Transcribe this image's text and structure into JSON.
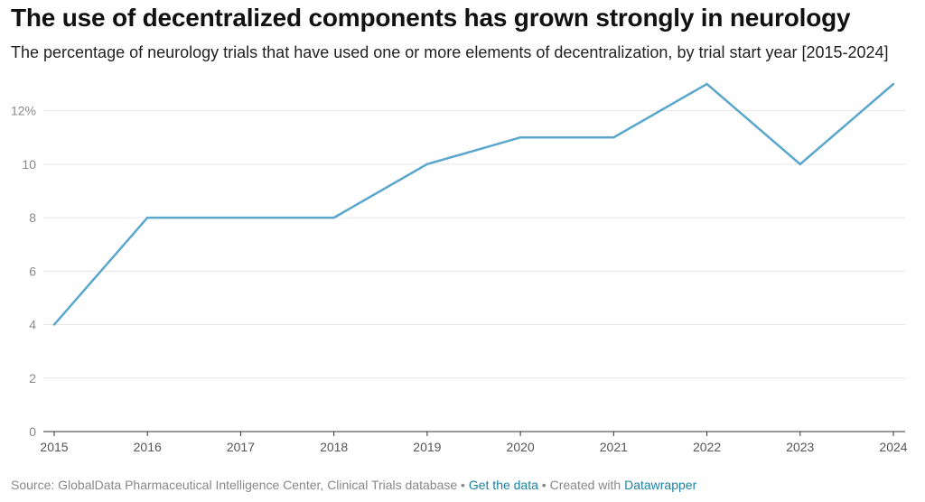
{
  "title": "The use of decentralized components has grown strongly in neurology",
  "subtitle": "The percentage of neurology trials that have used one or more elements of decentralization, by trial start year [2015-2024]",
  "footer": {
    "source": "Source: GlobalData Pharmaceutical Intelligence Center, Clinical Trials database",
    "separator1": "•",
    "get_data": "Get the data",
    "separator2": "•",
    "created_with": "Created with",
    "datawrapper": "Datawrapper"
  },
  "colors": {
    "line": "#5aa6cc",
    "grid": "#e6e6e6",
    "axis": "#333333"
  },
  "chart_data": {
    "type": "line",
    "x": [
      "2015",
      "2016",
      "2017",
      "2018",
      "2019",
      "2020",
      "2021",
      "2022",
      "2023",
      "2024"
    ],
    "series": [
      {
        "values": [
          4,
          8,
          8,
          8,
          10,
          11,
          11,
          13,
          10,
          13
        ]
      }
    ],
    "ylim": [
      0,
      13
    ],
    "yticks": [
      0,
      2,
      4,
      6,
      8,
      10,
      12
    ],
    "ytick_labels": [
      "0",
      "2",
      "4",
      "6",
      "8",
      "10",
      "12%"
    ],
    "grid": true
  }
}
